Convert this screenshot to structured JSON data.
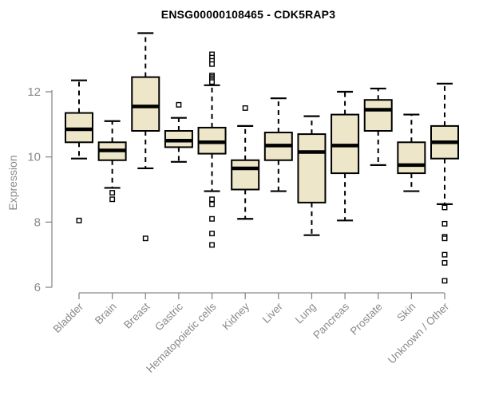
{
  "title": "ENSG00000108465 - CDK5RAP3",
  "chart_data": {
    "type": "box",
    "title": "ENSG00000108465 - CDK5RAP3",
    "xlabel": "",
    "ylabel": "Expression",
    "ylim": [
      6,
      12
    ],
    "yticks": [
      6,
      8,
      10,
      12
    ],
    "grid": false,
    "legend": "none",
    "categories": [
      "Bladder",
      "Brain",
      "Breast",
      "Gastric",
      "Hematopoietic cells",
      "Kidney",
      "Liver",
      "Lung",
      "Pancreas",
      "Prostate",
      "Skin",
      "Unknown / Other"
    ],
    "series": [
      {
        "name": "Bladder",
        "whisker_low": 9.95,
        "q1": 10.45,
        "median": 10.85,
        "q3": 11.35,
        "whisker_high": 12.35,
        "outliers": [
          8.05
        ]
      },
      {
        "name": "Brain",
        "whisker_low": 9.05,
        "q1": 9.9,
        "median": 10.2,
        "q3": 10.45,
        "whisker_high": 11.1,
        "outliers": [
          8.9,
          8.7
        ]
      },
      {
        "name": "Breast",
        "whisker_low": 9.65,
        "q1": 10.8,
        "median": 11.55,
        "q3": 12.45,
        "whisker_high": 13.8,
        "outliers": [
          7.5
        ]
      },
      {
        "name": "Gastric",
        "whisker_low": 9.85,
        "q1": 10.3,
        "median": 10.5,
        "q3": 10.8,
        "whisker_high": 11.2,
        "outliers": [
          11.6
        ]
      },
      {
        "name": "Hematopoietic cells",
        "whisker_low": 8.95,
        "q1": 10.1,
        "median": 10.45,
        "q3": 10.9,
        "whisker_high": 12.2,
        "outliers": [
          13.15,
          13.05,
          12.95,
          12.85,
          12.5,
          12.45,
          12.4,
          12.35,
          12.3,
          8.7,
          8.55,
          8.1,
          7.65,
          7.3
        ]
      },
      {
        "name": "Kidney",
        "whisker_low": 8.1,
        "q1": 9.0,
        "median": 9.65,
        "q3": 9.9,
        "whisker_high": 10.95,
        "outliers": [
          11.5
        ]
      },
      {
        "name": "Liver",
        "whisker_low": 8.95,
        "q1": 9.9,
        "median": 10.35,
        "q3": 10.75,
        "whisker_high": 11.8,
        "outliers": []
      },
      {
        "name": "Lung",
        "whisker_low": 7.6,
        "q1": 8.6,
        "median": 10.15,
        "q3": 10.7,
        "whisker_high": 11.25,
        "outliers": []
      },
      {
        "name": "Pancreas",
        "whisker_low": 8.05,
        "q1": 9.5,
        "median": 10.35,
        "q3": 11.3,
        "whisker_high": 12.0,
        "outliers": []
      },
      {
        "name": "Prostate",
        "whisker_low": 9.75,
        "q1": 10.8,
        "median": 11.45,
        "q3": 11.75,
        "whisker_high": 12.1,
        "outliers": []
      },
      {
        "name": "Skin",
        "whisker_low": 8.95,
        "q1": 9.5,
        "median": 9.75,
        "q3": 10.45,
        "whisker_high": 11.3,
        "outliers": []
      },
      {
        "name": "Unknown / Other",
        "whisker_low": 8.55,
        "q1": 9.95,
        "median": 10.45,
        "q3": 10.95,
        "whisker_high": 12.25,
        "outliers": [
          8.45,
          7.95,
          7.55,
          7.5,
          7.0,
          6.75,
          6.2
        ]
      }
    ],
    "colors": {
      "box_fill": "#EDE6C9",
      "box_stroke": "#000000",
      "median": "#000000",
      "whisker": "#000000",
      "outlier_stroke": "#000000",
      "outlier_fill": "#ffffff",
      "axis": "#8a8a8a",
      "tick_text": "#8a8a8a",
      "title_text": "#000000",
      "background": "#ffffff"
    }
  }
}
